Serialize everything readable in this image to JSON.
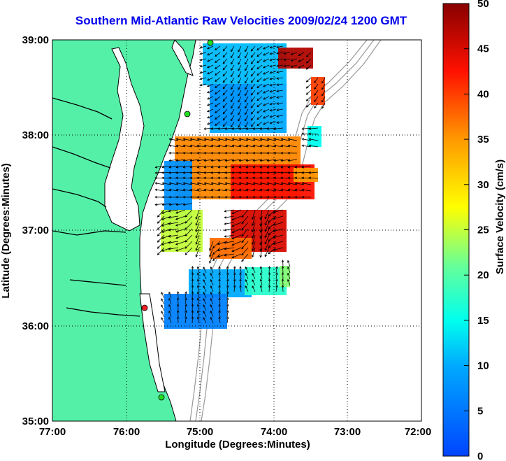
{
  "title": "Southern Mid-Atlantic Raw Velocities 2009/02/24 1200 GMT",
  "x_axis": {
    "label": "Longitude (Degrees:Minutes)",
    "ticks": [
      "77:00",
      "76:00",
      "75:00",
      "74:00",
      "73:00",
      "72:00"
    ]
  },
  "y_axis": {
    "label": "Latitude (Degrees:Minutes)",
    "ticks": [
      "39:00",
      "38:00",
      "37:00",
      "36:00",
      "35:00"
    ]
  },
  "colorbar": {
    "label": "Surface Velocity (cm/s)",
    "min": 0,
    "max": 50,
    "ticks": [
      "0",
      "5",
      "10",
      "15",
      "20",
      "25",
      "30",
      "35",
      "40",
      "45",
      "50"
    ]
  },
  "colors": {
    "land": "#55f0a8",
    "title": "#0000ee",
    "vectors": "#000000",
    "bathymetry": "#999999",
    "station_active": "#22dd22",
    "station_alert": "#ee2222"
  },
  "map": {
    "lon_range": [
      -77,
      -72
    ],
    "lat_range": [
      35,
      39
    ],
    "grid": "dotted"
  }
}
